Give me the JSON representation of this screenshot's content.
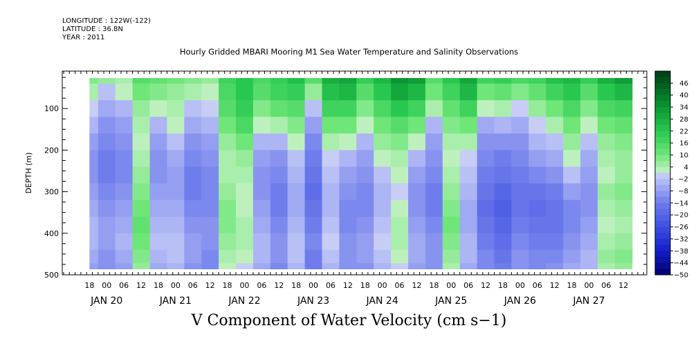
{
  "header": {
    "longitude": "LONGITUDE : 122W(-122)",
    "latitude": "LATITUDE : 36.8N",
    "year": "YEAR : 2011"
  },
  "title": "Hourly Gridded MBARI Mooring M1 Sea Water Temperature and Salinity Observations",
  "bottom_title": "V Component of Water Velocity (cm s−1)",
  "colors": {
    "strong_negative": "#00008f",
    "negative": "#6f7fe6",
    "weak_negative": "#b9bff6",
    "weak_positive": "#b7f0b7",
    "positive": "#33e06a",
    "strong_positive": "#00551f"
  },
  "chart_data": {
    "type": "heatmap",
    "title": "Hourly Gridded MBARI Mooring M1 Sea Water Temperature and Salinity Observations",
    "xlabel": "",
    "ylabel": "DEPTH (m)",
    "colorbar_label": "V Component of Water Velocity (cm s−1)",
    "ylim": [
      500,
      10
    ],
    "y_ticks": [
      100,
      200,
      300,
      400,
      500
    ],
    "data_depth_range": [
      20,
      485
    ],
    "x_range_hours": [
      "JAN 19 09",
      "JAN 27 15"
    ],
    "data_time_start": "JAN 19 18",
    "hour_ticks": [
      "18",
      "00",
      "06",
      "12",
      "18",
      "00",
      "06",
      "12",
      "18",
      "00",
      "06",
      "12",
      "18",
      "00",
      "06",
      "12",
      "18",
      "00",
      "06",
      "12",
      "18",
      "00",
      "06",
      "12",
      "18",
      "00",
      "06",
      "12",
      "18",
      "00",
      "06",
      "12"
    ],
    "day_labels": [
      "JAN 20",
      "JAN 21",
      "JAN 22",
      "JAN 23",
      "JAN 24",
      "JAN 25",
      "JAN 26",
      "JAN 27"
    ],
    "colorbar_levels": [
      "46",
      "40",
      "34",
      "28",
      "22",
      "16",
      "10",
      "4",
      "−2",
      "−8",
      "−14",
      "−20",
      "−26",
      "−32",
      "−38",
      "−44",
      "−50"
    ],
    "colorbar_range": [
      -50,
      52
    ],
    "depth_levels": [
      20,
      60,
      100,
      140,
      180,
      220,
      260,
      300,
      340,
      380,
      420,
      460,
      485
    ],
    "times": [
      "JAN 19 18",
      "JAN 20 00",
      "JAN 20 06",
      "JAN 20 12",
      "JAN 20 18",
      "JAN 21 00",
      "JAN 21 06",
      "JAN 21 12",
      "JAN 21 18",
      "JAN 22 00",
      "JAN 22 06",
      "JAN 22 12",
      "JAN 22 18",
      "JAN 23 00",
      "JAN 23 06",
      "JAN 23 12",
      "JAN 23 18",
      "JAN 24 00",
      "JAN 24 06",
      "JAN 24 12",
      "JAN 24 18",
      "JAN 25 00",
      "JAN 25 06",
      "JAN 25 12",
      "JAN 25 18",
      "JAN 26 00",
      "JAN 26 06",
      "JAN 26 12",
      "JAN 26 18",
      "JAN 27 00",
      "JAN 27 06",
      "JAN 27 12"
    ],
    "values": [
      [
        8,
        6,
        4,
        14,
        12,
        10,
        8,
        6,
        18,
        22,
        16,
        20,
        24,
        14,
        28,
        30,
        20,
        26,
        34,
        32,
        14,
        22,
        30,
        18,
        20,
        16,
        18,
        24,
        26,
        20,
        28,
        32
      ],
      [
        4,
        -2,
        2,
        10,
        8,
        6,
        4,
        2,
        16,
        22,
        14,
        18,
        20,
        6,
        24,
        26,
        14,
        22,
        30,
        26,
        10,
        18,
        26,
        10,
        12,
        8,
        12,
        18,
        22,
        14,
        22,
        26
      ],
      [
        0,
        -6,
        -4,
        6,
        2,
        4,
        -2,
        0,
        14,
        20,
        8,
        12,
        14,
        -2,
        18,
        18,
        8,
        16,
        22,
        18,
        4,
        12,
        18,
        2,
        4,
        0,
        6,
        10,
        16,
        8,
        16,
        18
      ],
      [
        -4,
        -10,
        -8,
        4,
        -4,
        2,
        -6,
        -4,
        10,
        16,
        2,
        4,
        8,
        -8,
        10,
        10,
        2,
        10,
        14,
        10,
        -4,
        8,
        10,
        -6,
        -4,
        -6,
        0,
        4,
        10,
        2,
        10,
        12
      ],
      [
        -8,
        -12,
        -10,
        2,
        -8,
        -2,
        -10,
        -8,
        6,
        10,
        -4,
        -4,
        2,
        -12,
        4,
        2,
        -4,
        6,
        8,
        2,
        -8,
        4,
        4,
        -10,
        -10,
        -10,
        -4,
        -2,
        6,
        -2,
        6,
        8
      ],
      [
        -10,
        -14,
        -12,
        4,
        -10,
        -6,
        -12,
        -10,
        4,
        6,
        -8,
        -10,
        -2,
        -14,
        0,
        -4,
        -8,
        2,
        4,
        -4,
        -10,
        2,
        0,
        -12,
        -14,
        -12,
        -8,
        -6,
        2,
        -6,
        4,
        6
      ],
      [
        -10,
        -14,
        -12,
        6,
        -10,
        -8,
        -14,
        -12,
        4,
        4,
        -10,
        -12,
        -4,
        -16,
        -2,
        -8,
        -10,
        -2,
        2,
        -8,
        -12,
        4,
        -2,
        -14,
        -16,
        -14,
        -12,
        -10,
        -2,
        -8,
        2,
        6
      ],
      [
        -8,
        -12,
        -10,
        8,
        -8,
        -8,
        -14,
        -12,
        6,
        2,
        -10,
        -14,
        -6,
        -18,
        -4,
        -10,
        -12,
        -4,
        0,
        -10,
        -14,
        6,
        -4,
        -16,
        -20,
        -16,
        -16,
        -14,
        -8,
        -10,
        6,
        8
      ],
      [
        -6,
        -10,
        -8,
        10,
        -6,
        -6,
        -12,
        -12,
        8,
        2,
        -8,
        -14,
        -6,
        -16,
        -4,
        -12,
        -12,
        -4,
        2,
        -10,
        -14,
        8,
        -6,
        -18,
        -22,
        -16,
        -18,
        -16,
        -12,
        -10,
        4,
        6
      ],
      [
        -4,
        -8,
        -6,
        12,
        -4,
        -4,
        -10,
        -10,
        8,
        4,
        -6,
        -12,
        -4,
        -14,
        -2,
        -12,
        -10,
        -2,
        4,
        -8,
        -12,
        10,
        -6,
        -16,
        -20,
        -14,
        -16,
        -16,
        -12,
        -8,
        2,
        4
      ],
      [
        -4,
        -8,
        -4,
        10,
        -2,
        -2,
        -8,
        -10,
        6,
        4,
        -4,
        -10,
        -2,
        -12,
        0,
        -10,
        -8,
        0,
        4,
        -6,
        -10,
        8,
        -4,
        -14,
        -18,
        -12,
        -14,
        -14,
        -10,
        -6,
        4,
        6
      ],
      [
        -6,
        -10,
        -6,
        8,
        -4,
        -2,
        -8,
        -12,
        4,
        2,
        -4,
        -10,
        -2,
        -14,
        -2,
        -10,
        -8,
        -2,
        2,
        -6,
        -10,
        6,
        -4,
        -12,
        -16,
        -10,
        -12,
        -12,
        -8,
        -4,
        6,
        8
      ],
      [
        -8,
        -10,
        -8,
        6,
        -6,
        -4,
        -10,
        -12,
        2,
        0,
        -6,
        -12,
        -4,
        -14,
        -4,
        -10,
        -10,
        -4,
        0,
        -8,
        -10,
        4,
        -6,
        -12,
        -14,
        -10,
        -12,
        -10,
        -6,
        -4,
        4,
        6
      ]
    ]
  }
}
